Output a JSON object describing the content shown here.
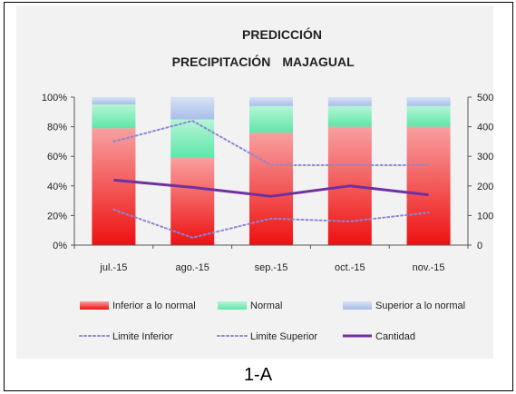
{
  "caption": "1-A",
  "chart_data": {
    "type": "bar",
    "title_line1": "PREDICCIÓN",
    "title_line2_left": "PRECIPITACIÓN",
    "title_line2_right": "MAJAGUAL",
    "categories": [
      "jul.-15",
      "ago.-15",
      "sep.-15",
      "oct.-15",
      "nov.-15"
    ],
    "y_left_ticks": [
      "0%",
      "20%",
      "40%",
      "60%",
      "80%",
      "100%"
    ],
    "y_right_ticks": [
      "0",
      "100",
      "200",
      "300",
      "400",
      "500"
    ],
    "y_left_range": [
      0,
      100
    ],
    "y_right_range": [
      0,
      500
    ],
    "stacked_series": [
      {
        "name": "Inferior a lo normal",
        "values": [
          79,
          59,
          76,
          80,
          80
        ],
        "color": "#f22a2a"
      },
      {
        "name": "Normal",
        "values": [
          16,
          26,
          18,
          14,
          14
        ],
        "color": "#7fefbd"
      },
      {
        "name": "Superior a lo normal",
        "values": [
          5,
          15,
          6,
          6,
          6
        ],
        "color": "#b7c9ef"
      }
    ],
    "line_series": [
      {
        "name": "Limite Inferior",
        "values": [
          120,
          25,
          90,
          80,
          110
        ],
        "color": "#8a86d6",
        "style": "dotted"
      },
      {
        "name": "Limite Superior",
        "values": [
          350,
          420,
          270,
          270,
          270
        ],
        "color": "#8a86d6",
        "style": "dotted"
      },
      {
        "name": "Cantidad",
        "values": [
          220,
          195,
          165,
          200,
          170
        ],
        "color": "#7030a0",
        "style": "solid"
      }
    ],
    "legend_placement": "bottom",
    "grid": false
  }
}
